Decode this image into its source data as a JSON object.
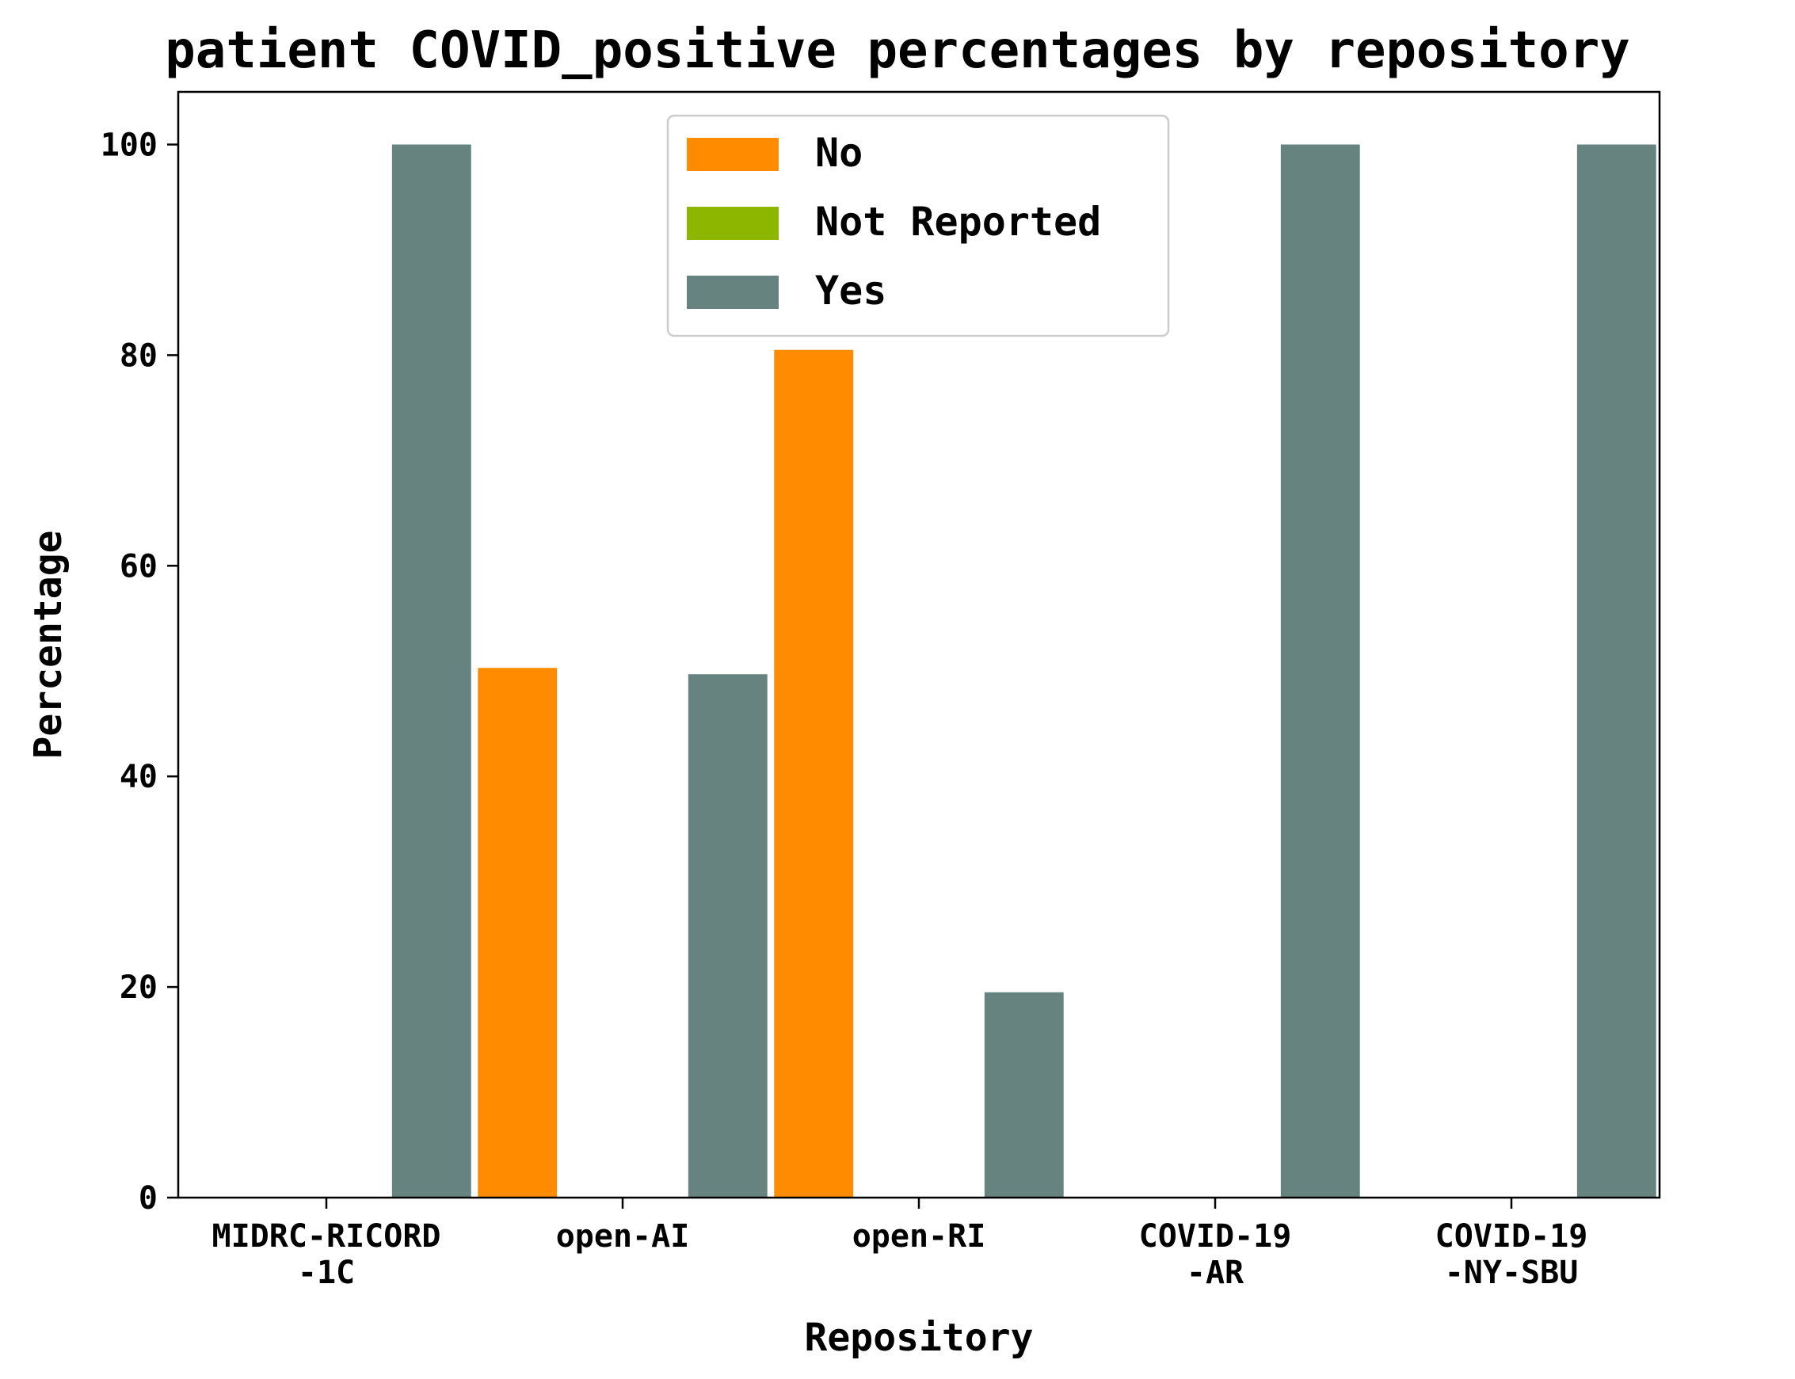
{
  "chart_data": {
    "type": "bar",
    "title": "patient COVID_positive percentages by repository",
    "xlabel": "Repository",
    "ylabel": "Percentage",
    "ylim": [
      0,
      105
    ],
    "yticks": [
      0,
      20,
      40,
      60,
      80,
      100
    ],
    "categories": [
      [
        "MIDRC-RICORD",
        "-1C"
      ],
      [
        "open-AI"
      ],
      [
        "open-RI"
      ],
      [
        "COVID-19",
        "-AR"
      ],
      [
        "COVID-19",
        "-NY-SBU"
      ]
    ],
    "series": [
      {
        "name": "No",
        "color": "#ff8c00",
        "values": [
          0,
          50.3,
          80.5,
          0,
          0
        ]
      },
      {
        "name": "Not Reported",
        "color": "#8db600",
        "values": [
          0,
          0,
          0,
          0,
          0
        ]
      },
      {
        "name": "Yes",
        "color": "#668380",
        "values": [
          100,
          49.7,
          19.5,
          100,
          100
        ]
      }
    ],
    "legend": "upper-center",
    "grid": false
  }
}
